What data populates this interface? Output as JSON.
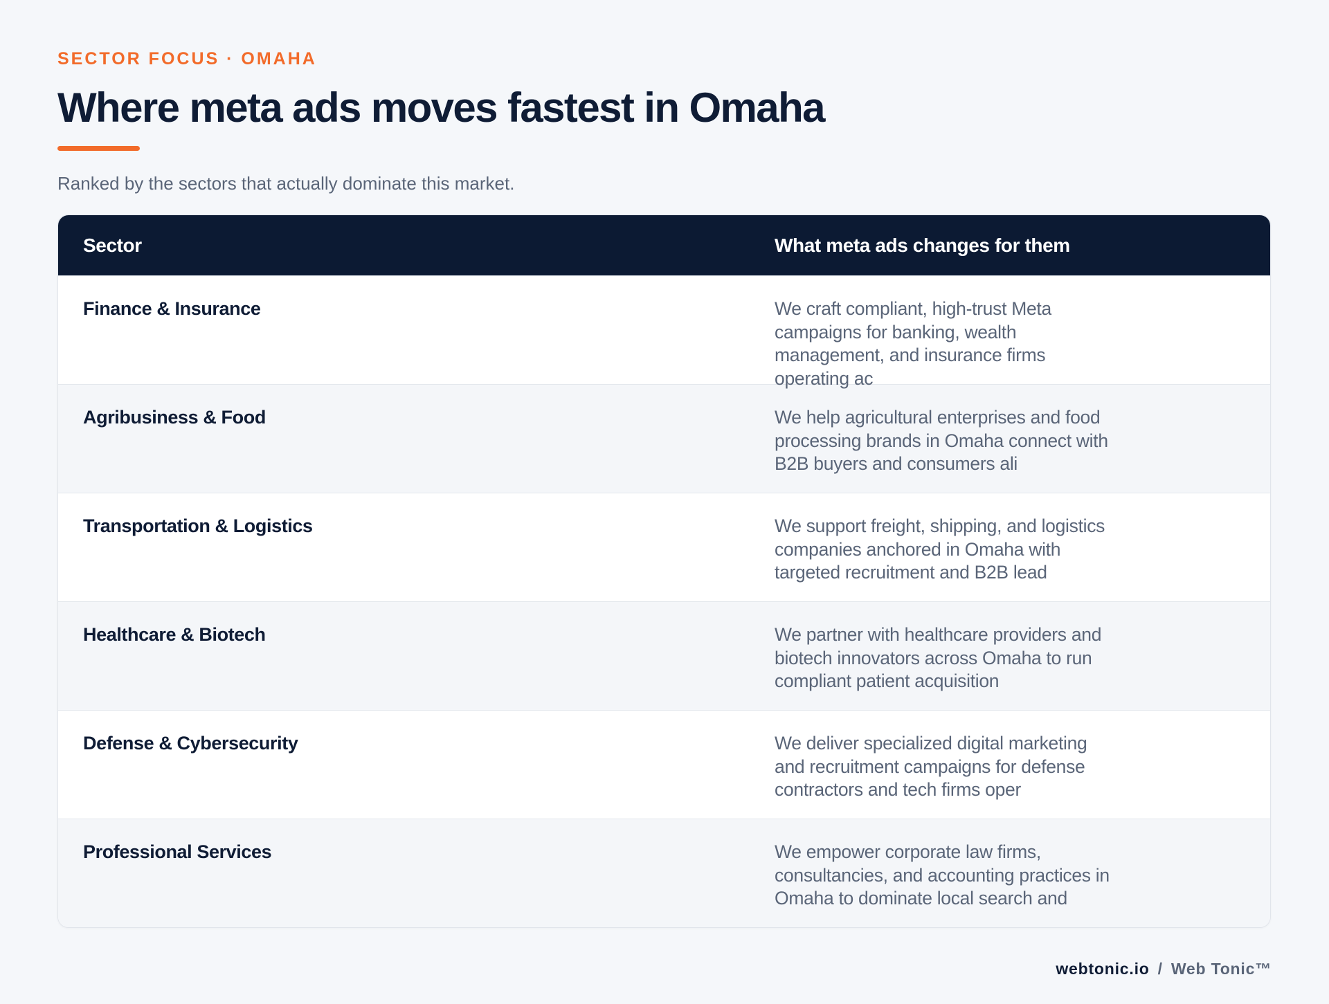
{
  "header": {
    "eyebrow": "SECTOR FOCUS · OMAHA",
    "title": "Where meta ads moves fastest in Omaha",
    "subtitle": "Ranked by the sectors that actually dominate this market."
  },
  "table": {
    "columns": [
      "Sector",
      "What meta ads changes for them"
    ],
    "rows": [
      {
        "sector": "Finance & Insurance",
        "description": "We craft compliant, high-trust Meta campaigns for banking, wealth management, and insurance firms operating ac"
      },
      {
        "sector": "Agribusiness & Food",
        "description": "We help agricultural enterprises and food processing brands in Omaha connect with B2B buyers and consumers ali"
      },
      {
        "sector": "Transportation & Logistics",
        "description": "We support freight, shipping, and logistics companies anchored in Omaha with targeted recruitment and B2B lead"
      },
      {
        "sector": "Healthcare & Biotech",
        "description": "We partner with healthcare providers and biotech innovators across Omaha to run compliant patient acquisition"
      },
      {
        "sector": "Defense & Cybersecurity",
        "description": "We deliver specialized digital marketing and recruitment campaigns for defense contractors and tech firms oper"
      },
      {
        "sector": "Professional Services",
        "description": "We empower corporate law firms, consultancies, and accounting practices in Omaha to dominate local search and"
      }
    ]
  },
  "footer": {
    "domain": "webtonic.io",
    "separator": "/",
    "brand": "Web Tonic™"
  },
  "colors": {
    "accent": "#f26b2a",
    "navy": "#0c1a33",
    "text_muted": "#5a6578",
    "background": "#f5f7fa"
  }
}
